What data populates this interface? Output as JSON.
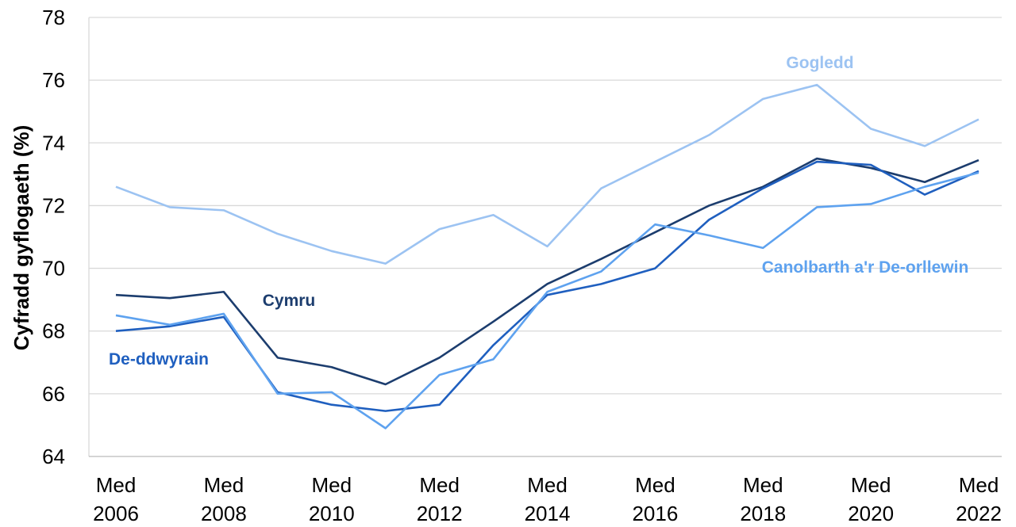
{
  "chart_data": {
    "type": "line",
    "ylabel": "Cyfradd gyflogaeth (%)",
    "categories": [
      "Med 2006",
      null,
      "Med 2008",
      null,
      "Med 2010",
      null,
      "Med 2012",
      null,
      "Med 2014",
      null,
      "Med 2016",
      null,
      "Med 2018",
      null,
      "Med 2020",
      null,
      "Med 2022"
    ],
    "series": [
      {
        "name": "Gogledd",
        "color": "#9cc3f2",
        "values": [
          72.6,
          71.95,
          71.85,
          71.1,
          70.55,
          70.15,
          71.25,
          71.7,
          70.7,
          72.55,
          73.4,
          74.25,
          75.4,
          75.85,
          74.45,
          73.9,
          74.75
        ]
      },
      {
        "name": "Cymru",
        "color": "#1c3d6e",
        "values": [
          69.15,
          69.05,
          69.25,
          67.15,
          66.85,
          66.3,
          67.15,
          68.3,
          69.5,
          70.3,
          71.15,
          72.0,
          72.6,
          73.5,
          73.2,
          72.75,
          73.45
        ]
      },
      {
        "name": "De-ddwyrain",
        "color": "#1f5fbf",
        "values": [
          68.0,
          68.15,
          68.45,
          66.05,
          65.65,
          65.45,
          65.65,
          67.55,
          69.15,
          69.5,
          70.0,
          71.55,
          72.55,
          73.4,
          73.3,
          72.35,
          73.1
        ]
      },
      {
        "name": "Canolbarth a'r De-orllewin",
        "color": "#5ea2ef",
        "values": [
          68.5,
          68.2,
          68.55,
          66.0,
          66.05,
          64.9,
          66.6,
          67.1,
          69.25,
          69.9,
          71.4,
          71.05,
          70.65,
          71.95,
          72.05,
          72.6,
          73.05
        ]
      }
    ],
    "ylim": [
      64,
      78
    ],
    "yticks": [
      64,
      66,
      68,
      70,
      72,
      74,
      76,
      78
    ],
    "grid": true
  }
}
